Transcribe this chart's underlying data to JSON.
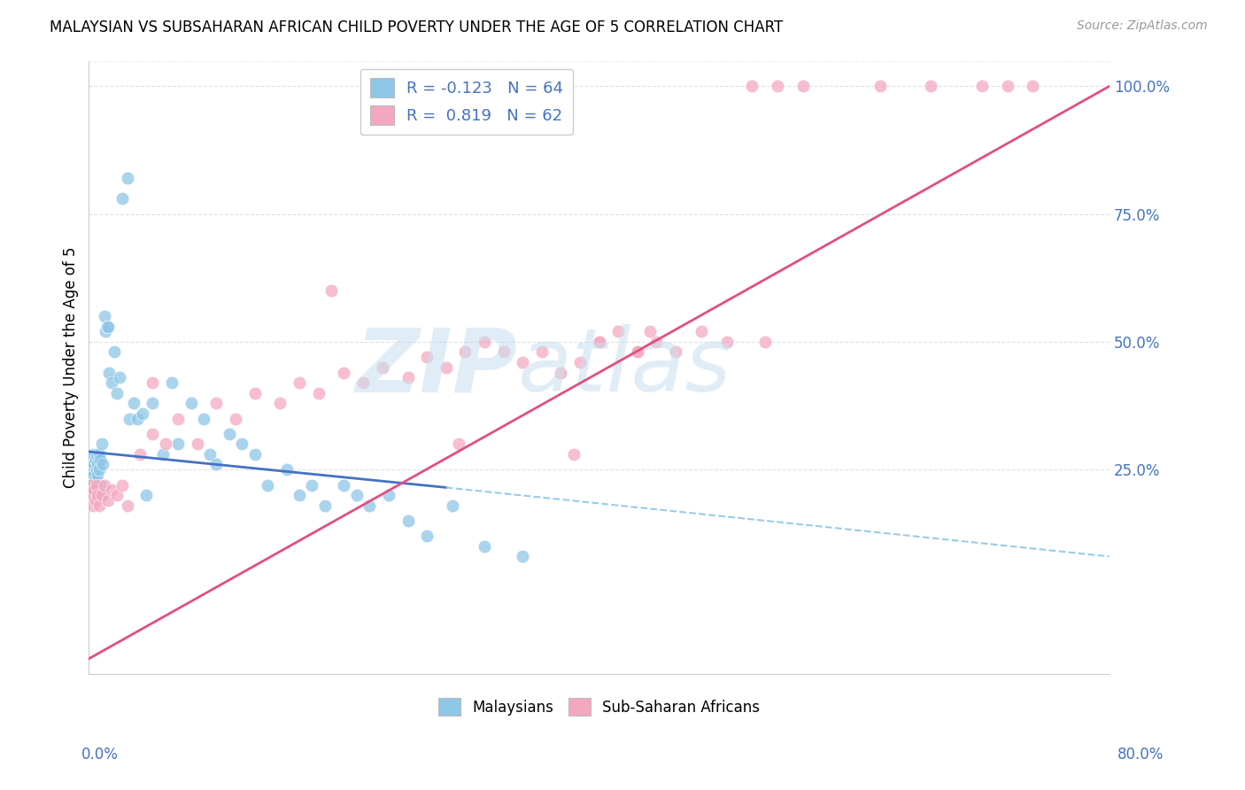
{
  "title": "MALAYSIAN VS SUBSAHARAN AFRICAN CHILD POVERTY UNDER THE AGE OF 5 CORRELATION CHART",
  "source": "Source: ZipAtlas.com",
  "ylabel_left": "Child Poverty Under the Age of 5",
  "legend_blue_r": "R = -0.123",
  "legend_blue_n": "N = 64",
  "legend_pink_r": "R =  0.819",
  "legend_pink_n": "N = 62",
  "blue_color": "#8EC6E8",
  "pink_color": "#F4A8C0",
  "trend_blue_solid_color": "#4472C4",
  "trend_blue_dash_color": "#8EC6E8",
  "trend_pink_color": "#E05080",
  "watermark": "ZIPatlas",
  "watermark_color": "#C8DFF0",
  "xmin": 0.0,
  "xmax": 0.8,
  "ymin": -0.15,
  "ymax": 1.05,
  "ylabel_right_ticks": [
    "100.0%",
    "75.0%",
    "50.0%",
    "25.0%"
  ],
  "ylabel_right_vals": [
    1.0,
    0.75,
    0.5,
    0.25
  ],
  "blue_scatter_x": [
    0.001,
    0.001,
    0.002,
    0.002,
    0.003,
    0.003,
    0.003,
    0.004,
    0.004,
    0.005,
    0.005,
    0.006,
    0.006,
    0.006,
    0.007,
    0.007,
    0.008,
    0.008,
    0.009,
    0.009,
    0.01,
    0.01,
    0.011,
    0.012,
    0.013,
    0.014,
    0.015,
    0.016,
    0.018,
    0.02,
    0.022,
    0.024,
    0.026,
    0.03,
    0.032,
    0.035,
    0.038,
    0.042,
    0.045,
    0.05,
    0.058,
    0.065,
    0.07,
    0.08,
    0.09,
    0.095,
    0.1,
    0.11,
    0.12,
    0.13,
    0.14,
    0.155,
    0.165,
    0.175,
    0.185,
    0.2,
    0.21,
    0.22,
    0.235,
    0.25,
    0.265,
    0.285,
    0.31,
    0.34
  ],
  "blue_scatter_y": [
    0.26,
    0.24,
    0.27,
    0.25,
    0.28,
    0.22,
    0.2,
    0.26,
    0.24,
    0.23,
    0.27,
    0.25,
    0.28,
    0.21,
    0.26,
    0.24,
    0.25,
    0.28,
    0.27,
    0.22,
    0.3,
    0.2,
    0.26,
    0.55,
    0.52,
    0.53,
    0.53,
    0.44,
    0.42,
    0.48,
    0.4,
    0.43,
    0.78,
    0.82,
    0.35,
    0.38,
    0.35,
    0.36,
    0.2,
    0.38,
    0.28,
    0.42,
    0.3,
    0.38,
    0.35,
    0.28,
    0.26,
    0.32,
    0.3,
    0.28,
    0.22,
    0.25,
    0.2,
    0.22,
    0.18,
    0.22,
    0.2,
    0.18,
    0.2,
    0.15,
    0.12,
    0.18,
    0.1,
    0.08
  ],
  "pink_scatter_x": [
    0.001,
    0.002,
    0.003,
    0.004,
    0.005,
    0.006,
    0.007,
    0.008,
    0.01,
    0.012,
    0.015,
    0.018,
    0.022,
    0.026,
    0.03,
    0.04,
    0.05,
    0.06,
    0.07,
    0.085,
    0.1,
    0.115,
    0.13,
    0.15,
    0.165,
    0.18,
    0.2,
    0.215,
    0.23,
    0.25,
    0.265,
    0.28,
    0.295,
    0.31,
    0.325,
    0.34,
    0.355,
    0.37,
    0.385,
    0.4,
    0.415,
    0.43,
    0.445,
    0.05,
    0.4,
    0.43,
    0.52,
    0.54,
    0.56,
    0.62,
    0.66,
    0.7,
    0.72,
    0.74,
    0.38,
    0.29,
    0.19,
    0.44,
    0.46,
    0.5,
    0.48,
    0.53
  ],
  "pink_scatter_y": [
    0.22,
    0.2,
    0.18,
    0.21,
    0.19,
    0.22,
    0.2,
    0.18,
    0.2,
    0.22,
    0.19,
    0.21,
    0.2,
    0.22,
    0.18,
    0.28,
    0.32,
    0.3,
    0.35,
    0.3,
    0.38,
    0.35,
    0.4,
    0.38,
    0.42,
    0.4,
    0.44,
    0.42,
    0.45,
    0.43,
    0.47,
    0.45,
    0.48,
    0.5,
    0.48,
    0.46,
    0.48,
    0.44,
    0.46,
    0.5,
    0.52,
    0.48,
    0.5,
    0.42,
    0.5,
    0.48,
    1.0,
    1.0,
    1.0,
    1.0,
    1.0,
    1.0,
    1.0,
    1.0,
    0.28,
    0.3,
    0.6,
    0.52,
    0.48,
    0.5,
    0.52,
    0.5
  ],
  "blue_trend_x0": 0.0,
  "blue_trend_y0": 0.285,
  "blue_trend_x_solid_end": 0.28,
  "blue_trend_y_solid_end": 0.215,
  "blue_trend_x_dash_end": 0.8,
  "blue_trend_y_dash_end": 0.08,
  "pink_trend_x0": 0.0,
  "pink_trend_y0": -0.12,
  "pink_trend_x1": 0.8,
  "pink_trend_y1": 1.0,
  "background_color": "#FFFFFF",
  "grid_color": "#DDDDDD"
}
